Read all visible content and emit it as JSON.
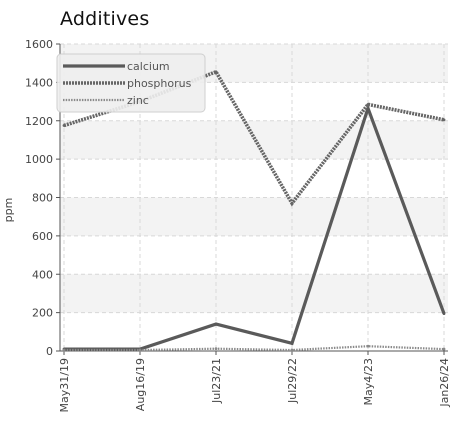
{
  "chart_data": {
    "type": "line",
    "title": "Additives",
    "ylabel": "ppm",
    "xlabel": "",
    "categories": [
      "May31/19",
      "Aug16/19",
      "Jul23/21",
      "Jul29/22",
      "May4/23",
      "Jan26/24"
    ],
    "ylim": [
      0,
      1600
    ],
    "yticks": [
      0,
      200,
      400,
      600,
      800,
      1000,
      1200,
      1400,
      1600
    ],
    "grid": true,
    "legend_position": "top-left",
    "series": [
      {
        "name": "calcium",
        "values": [
          10,
          10,
          140,
          40,
          1265,
          195
        ],
        "color": "#5a5a5a",
        "style": "solid"
      },
      {
        "name": "phosphorus",
        "values": [
          1175,
          1300,
          1455,
          770,
          1285,
          1205
        ],
        "color": "#666666",
        "style": "dense-dashed"
      },
      {
        "name": "zinc",
        "values": [
          5,
          5,
          12,
          5,
          25,
          10
        ],
        "color": "#8a8a8a",
        "style": "dotted"
      }
    ]
  }
}
